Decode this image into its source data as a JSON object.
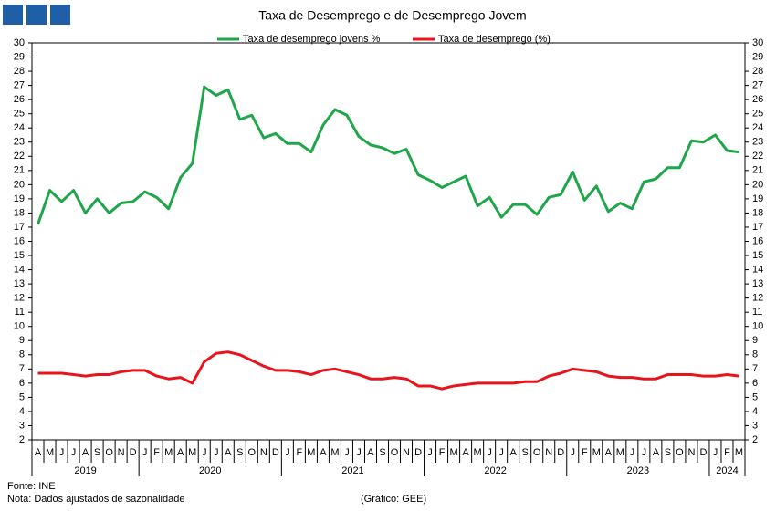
{
  "chart_data": {
    "type": "line",
    "title": "Taxa de Desemprego e de Desemprego Jovem",
    "year_groups": [
      {
        "label": "2019",
        "categories": [
          "A",
          "M",
          "J",
          "J",
          "A",
          "S",
          "O",
          "N",
          "D"
        ]
      },
      {
        "label": "2020",
        "categories": [
          "J",
          "F",
          "M",
          "A",
          "M",
          "J",
          "J",
          "A",
          "S",
          "O",
          "N",
          "D"
        ]
      },
      {
        "label": "2021",
        "categories": [
          "J",
          "F",
          "M",
          "A",
          "M",
          "J",
          "J",
          "A",
          "S",
          "O",
          "N",
          "D"
        ]
      },
      {
        "label": "2022",
        "categories": [
          "J",
          "F",
          "M",
          "A",
          "M",
          "J",
          "J",
          "A",
          "S",
          "O",
          "N",
          "D"
        ]
      },
      {
        "label": "2023",
        "categories": [
          "J",
          "F",
          "M",
          "A",
          "M",
          "J",
          "J",
          "A",
          "S",
          "O",
          "N",
          "D"
        ]
      },
      {
        "label": "2024",
        "categories": [
          "J",
          "F",
          "M"
        ]
      }
    ],
    "series": [
      {
        "name": "Taxa de desemprego jovens %",
        "color": "#1fa64a",
        "values": [
          17.2,
          19.6,
          18.8,
          19.6,
          18.0,
          19.0,
          18.0,
          18.7,
          18.8,
          19.5,
          19.1,
          18.3,
          20.5,
          21.5,
          26.9,
          26.3,
          26.7,
          24.6,
          24.9,
          23.3,
          23.6,
          22.9,
          22.9,
          22.3,
          24.2,
          25.3,
          24.9,
          23.4,
          22.8,
          22.6,
          22.2,
          22.5,
          20.7,
          20.3,
          19.8,
          20.2,
          20.6,
          18.5,
          19.1,
          17.7,
          18.6,
          18.6,
          17.9,
          19.1,
          19.3,
          20.9,
          18.9,
          19.9,
          18.1,
          18.7,
          18.3,
          20.2,
          20.4,
          21.2,
          21.2,
          23.1,
          23.0,
          23.5,
          22.4,
          22.3
        ]
      },
      {
        "name": "Taxa de desemprego (%)",
        "color": "#e8141c",
        "values": [
          6.7,
          6.7,
          6.7,
          6.6,
          6.5,
          6.6,
          6.6,
          6.8,
          6.9,
          6.9,
          6.5,
          6.3,
          6.4,
          6.0,
          7.5,
          8.1,
          8.2,
          8.0,
          7.6,
          7.2,
          6.9,
          6.9,
          6.8,
          6.6,
          6.9,
          7.0,
          6.8,
          6.6,
          6.3,
          6.3,
          6.4,
          6.3,
          5.8,
          5.8,
          5.6,
          5.8,
          5.9,
          6.0,
          6.0,
          6.0,
          6.0,
          6.1,
          6.1,
          6.5,
          6.7,
          7.0,
          6.9,
          6.8,
          6.5,
          6.4,
          6.4,
          6.3,
          6.3,
          6.6,
          6.6,
          6.6,
          6.5,
          6.5,
          6.6,
          6.5
        ]
      }
    ],
    "ylim": [
      2,
      30
    ],
    "yticks": [
      2,
      3,
      4,
      5,
      6,
      7,
      8,
      9,
      10,
      11,
      12,
      13,
      14,
      15,
      16,
      17,
      18,
      19,
      20,
      21,
      22,
      23,
      24,
      25,
      26,
      27,
      28,
      29,
      30
    ],
    "y2lim": [
      2,
      30
    ],
    "y2ticks": [
      2,
      3,
      4,
      5,
      6,
      7,
      8,
      9,
      10,
      11,
      12,
      13,
      14,
      15,
      16,
      17,
      18,
      19,
      20,
      21,
      22,
      23,
      24,
      25,
      26,
      27,
      28,
      29,
      30
    ],
    "grid": false,
    "source": "Fonte: INE",
    "note": "Nota: Dados ajustados de sazonalidade",
    "credit": "(Gráfico: GEE)"
  }
}
